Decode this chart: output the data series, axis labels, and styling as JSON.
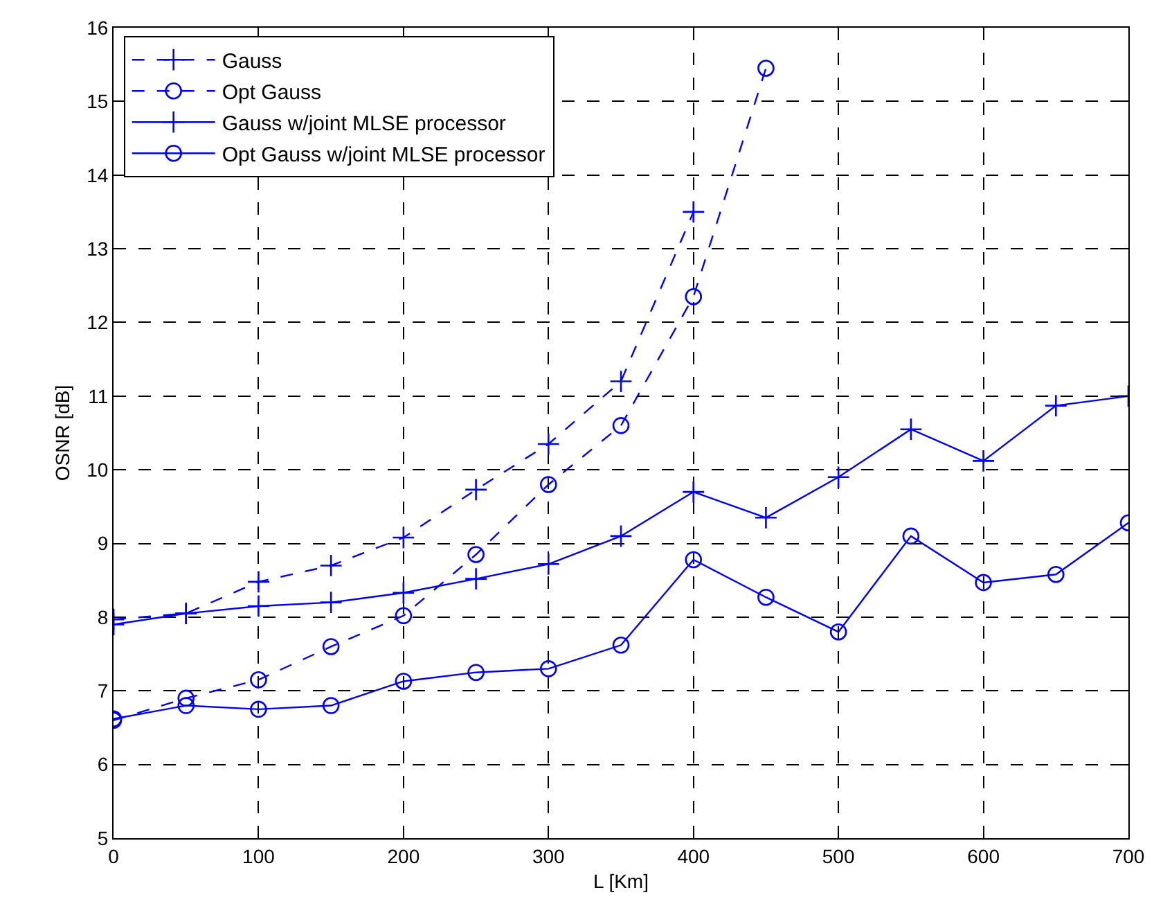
{
  "chart_data": {
    "type": "line",
    "xlabel": "L [Km]",
    "ylabel": "OSNR [dB]",
    "x": [
      0,
      50,
      100,
      150,
      200,
      250,
      300,
      350,
      400,
      450,
      500,
      550,
      600,
      650,
      700
    ],
    "series": [
      {
        "name": "Gauss",
        "color": "#0000ff",
        "line_style": "dashed",
        "marker": "cross",
        "x": [
          0,
          50,
          100,
          150,
          200,
          250,
          300,
          350,
          400
        ],
        "values": [
          7.97,
          8.05,
          8.48,
          8.7,
          9.08,
          9.73,
          10.35,
          11.2,
          13.5
        ]
      },
      {
        "name": "Opt Gauss",
        "color": "#0000ff",
        "line_style": "dashed",
        "marker": "circle",
        "x": [
          0,
          50,
          100,
          150,
          200,
          250,
          300,
          350,
          400,
          450
        ],
        "values": [
          6.6,
          6.9,
          7.15,
          7.6,
          8.02,
          8.85,
          9.8,
          10.6,
          12.35,
          15.45
        ]
      },
      {
        "name": "Gauss w/joint MLSE processor",
        "color": "#0000ff",
        "line_style": "solid",
        "marker": "cross",
        "values": [
          7.9,
          8.05,
          8.15,
          8.2,
          8.33,
          8.52,
          8.72,
          9.1,
          9.7,
          9.35,
          9.9,
          10.55,
          10.12,
          10.87,
          11.0
        ]
      },
      {
        "name": "Opt Gauss w/joint MLSE processor",
        "color": "#0000ff",
        "line_style": "solid",
        "marker": "circle",
        "values": [
          6.62,
          6.8,
          6.75,
          6.8,
          7.13,
          7.25,
          7.3,
          7.62,
          8.78,
          8.27,
          7.8,
          9.1,
          8.47,
          8.58,
          9.28
        ]
      }
    ],
    "xlim": [
      0,
      700
    ],
    "xticks": [
      0,
      100,
      200,
      300,
      400,
      500,
      600,
      700
    ],
    "ylim": [
      5,
      16
    ],
    "yticks": [
      5,
      6,
      7,
      8,
      9,
      10,
      11,
      12,
      13,
      14,
      15,
      16
    ],
    "grid": true,
    "legend": "top left"
  }
}
